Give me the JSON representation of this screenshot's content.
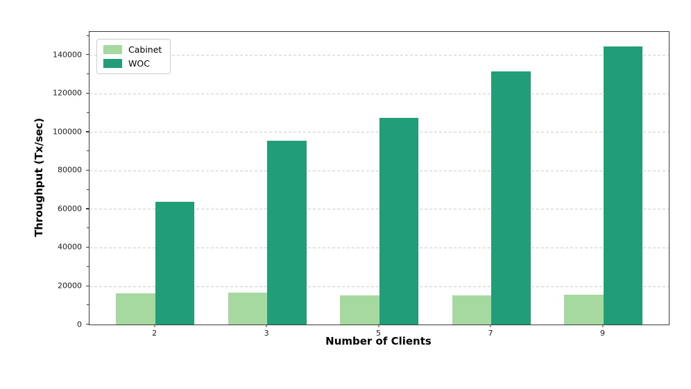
{
  "chart_data": {
    "type": "bar",
    "title": "",
    "xlabel": "Number of Clients",
    "ylabel": "Throughput (Tx/sec)",
    "categories": [
      "2",
      "3",
      "5",
      "7",
      "9"
    ],
    "series": [
      {
        "name": "Cabinet",
        "color": "#a6d99f",
        "values": [
          16200,
          16600,
          15300,
          15300,
          15500
        ]
      },
      {
        "name": "WOC",
        "color": "#219e78",
        "values": [
          63900,
          95500,
          107500,
          131500,
          144500
        ]
      }
    ],
    "ylim": [
      0,
      152000
    ],
    "yticks": [
      0,
      20000,
      40000,
      60000,
      80000,
      100000,
      120000,
      140000
    ],
    "ytick_minor_step": 10000,
    "grid": "horizontal-dashed",
    "gridline_color": "#cdcdcd",
    "legend_position": "upper-left",
    "legend_entries": [
      "Cabinet",
      "WOC"
    ]
  }
}
